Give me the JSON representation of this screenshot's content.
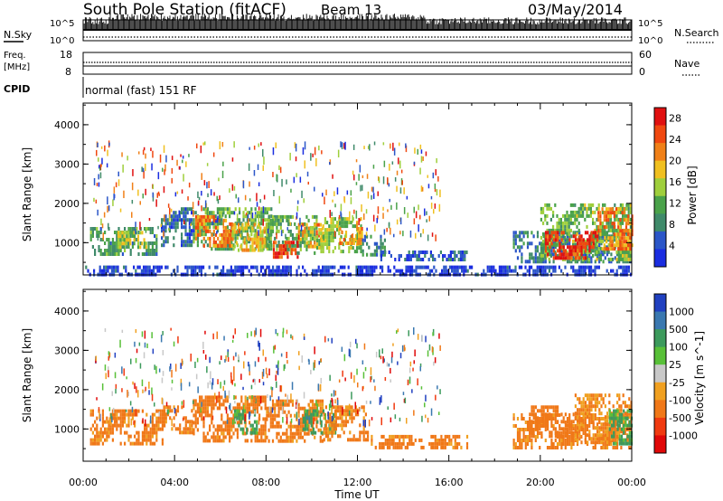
{
  "header": {
    "station_title": "South Pole Station (fitACF)",
    "beam_label": "Beam 13",
    "date_label": "03/May/2014"
  },
  "status_panels": {
    "nsky": {
      "label": "N.Sky",
      "right_label": "N.Search",
      "tick_top": "10^5",
      "tick_bottom": "10^0"
    },
    "freq": {
      "label_line1": "Freq.",
      "label_line2": "[MHz]",
      "right_label": "Nave",
      "left_ticks": [
        "18",
        "8"
      ],
      "right_ticks": [
        "60",
        "0"
      ]
    },
    "cpid": {
      "label": "CPID",
      "value": "normal (fast) 151 RF"
    }
  },
  "colors": {
    "power_scale": [
      "#1a2de0",
      "#2b56c8",
      "#3f8a6a",
      "#4aa24a",
      "#9fcf3c",
      "#f0c020",
      "#f08018",
      "#f04810",
      "#e01010"
    ],
    "velocity_scale": [
      "#2040c0",
      "#3a78b0",
      "#3c9a5c",
      "#58c038",
      "#c8c8c8",
      "#f0a020",
      "#f07818",
      "#f03a10",
      "#e00808"
    ],
    "noise_band": "#1a2de0"
  },
  "chart_data": [
    {
      "type": "heatmap",
      "panel": "power",
      "xlabel": "Time UT",
      "ylabel": "Slant Range [km]",
      "x_ticks": [
        "00:00",
        "04:00",
        "08:00",
        "12:00",
        "16:00",
        "20:00",
        "00:00"
      ],
      "x_range_hours": [
        0,
        24
      ],
      "y_ticks": [
        "1000",
        "2000",
        "3000",
        "4000"
      ],
      "y_range_km": [
        180,
        4550
      ],
      "colorbar_label": "Power [dB]",
      "colorbar_ticks": [
        "4",
        "8",
        "12",
        "16",
        "20",
        "24",
        "28"
      ],
      "colorbar_range": [
        0,
        30
      ],
      "regions": [
        {
          "t0": 0.3,
          "t1": 3.2,
          "r0": 700,
          "r1": 1400,
          "v": 10
        },
        {
          "t0": 1.5,
          "t1": 2.8,
          "r0": 900,
          "r1": 1300,
          "v": 16
        },
        {
          "t0": 3.4,
          "t1": 4.8,
          "r0": 900,
          "r1": 1900,
          "v": 6
        },
        {
          "t0": 4.8,
          "t1": 8.2,
          "r0": 800,
          "r1": 1900,
          "v": 12
        },
        {
          "t0": 4.9,
          "t1": 6.5,
          "r0": 900,
          "r1": 1700,
          "v": 22
        },
        {
          "t0": 6.5,
          "t1": 8.0,
          "r0": 800,
          "r1": 1500,
          "v": 18
        },
        {
          "t0": 8.0,
          "t1": 10.2,
          "r0": 700,
          "r1": 1700,
          "v": 12
        },
        {
          "t0": 8.3,
          "t1": 9.4,
          "r0": 650,
          "r1": 1050,
          "v": 26
        },
        {
          "t0": 9.4,
          "t1": 10.5,
          "r0": 900,
          "r1": 1500,
          "v": 20
        },
        {
          "t0": 10.2,
          "t1": 12.2,
          "r0": 750,
          "r1": 1650,
          "v": 14
        },
        {
          "t0": 11.2,
          "t1": 12.2,
          "r0": 1000,
          "r1": 1400,
          "v": 20
        },
        {
          "t0": 12.2,
          "t1": 13.2,
          "r0": 700,
          "r1": 1200,
          "v": 9
        },
        {
          "t0": 13.0,
          "t1": 16.8,
          "r0": 600,
          "r1": 800,
          "v": 5
        },
        {
          "t0": 18.8,
          "t1": 24.0,
          "r0": 500,
          "r1": 1300,
          "v": 7
        },
        {
          "t0": 20.0,
          "t1": 24.0,
          "r0": 600,
          "r1": 2000,
          "v": 13
        },
        {
          "t0": 20.2,
          "t1": 22.5,
          "r0": 650,
          "r1": 1300,
          "v": 27
        },
        {
          "t0": 22.5,
          "t1": 24.0,
          "r0": 800,
          "r1": 1900,
          "v": 22
        },
        {
          "t0": 0.0,
          "t1": 24.0,
          "r0": 200,
          "r1": 420,
          "v": 3
        }
      ]
    },
    {
      "type": "heatmap",
      "panel": "velocity",
      "xlabel": "Time UT",
      "ylabel": "Slant Range [km]",
      "x_ticks": [
        "00:00",
        "04:00",
        "08:00",
        "12:00",
        "16:00",
        "20:00",
        "00:00"
      ],
      "x_range_hours": [
        0,
        24
      ],
      "y_ticks": [
        "1000",
        "2000",
        "3000",
        "4000"
      ],
      "y_range_km": [
        180,
        4550
      ],
      "colorbar_label": "Velocity [m s^-1]",
      "colorbar_ticks": [
        "1000",
        "500",
        "100",
        "25",
        "-25",
        "-100",
        "-500",
        "-1000"
      ],
      "regions": [
        {
          "t0": 0.3,
          "t1": 3.6,
          "r0": 600,
          "r1": 1500,
          "v": -150
        },
        {
          "t0": 3.5,
          "t1": 4.8,
          "r0": 900,
          "r1": 1600,
          "v": -150
        },
        {
          "t0": 4.8,
          "t1": 8.0,
          "r0": 700,
          "r1": 1850,
          "v": -200
        },
        {
          "t0": 6.6,
          "t1": 7.6,
          "r0": 900,
          "r1": 1500,
          "v": 150
        },
        {
          "t0": 8.0,
          "t1": 10.5,
          "r0": 650,
          "r1": 1750,
          "v": -150
        },
        {
          "t0": 9.6,
          "t1": 11.0,
          "r0": 900,
          "r1": 1500,
          "v": 200
        },
        {
          "t0": 10.5,
          "t1": 12.5,
          "r0": 700,
          "r1": 1600,
          "v": -120
        },
        {
          "t0": 12.5,
          "t1": 16.8,
          "r0": 550,
          "r1": 850,
          "v": -150
        },
        {
          "t0": 18.8,
          "t1": 24.0,
          "r0": 500,
          "r1": 1400,
          "v": -150
        },
        {
          "t0": 19.5,
          "t1": 21.5,
          "r0": 800,
          "r1": 1600,
          "v": -250
        },
        {
          "t0": 21.5,
          "t1": 24.0,
          "r0": 700,
          "r1": 1900,
          "v": -100
        },
        {
          "t0": 23.0,
          "t1": 24.0,
          "r0": 600,
          "r1": 1500,
          "v": 120
        }
      ]
    }
  ]
}
